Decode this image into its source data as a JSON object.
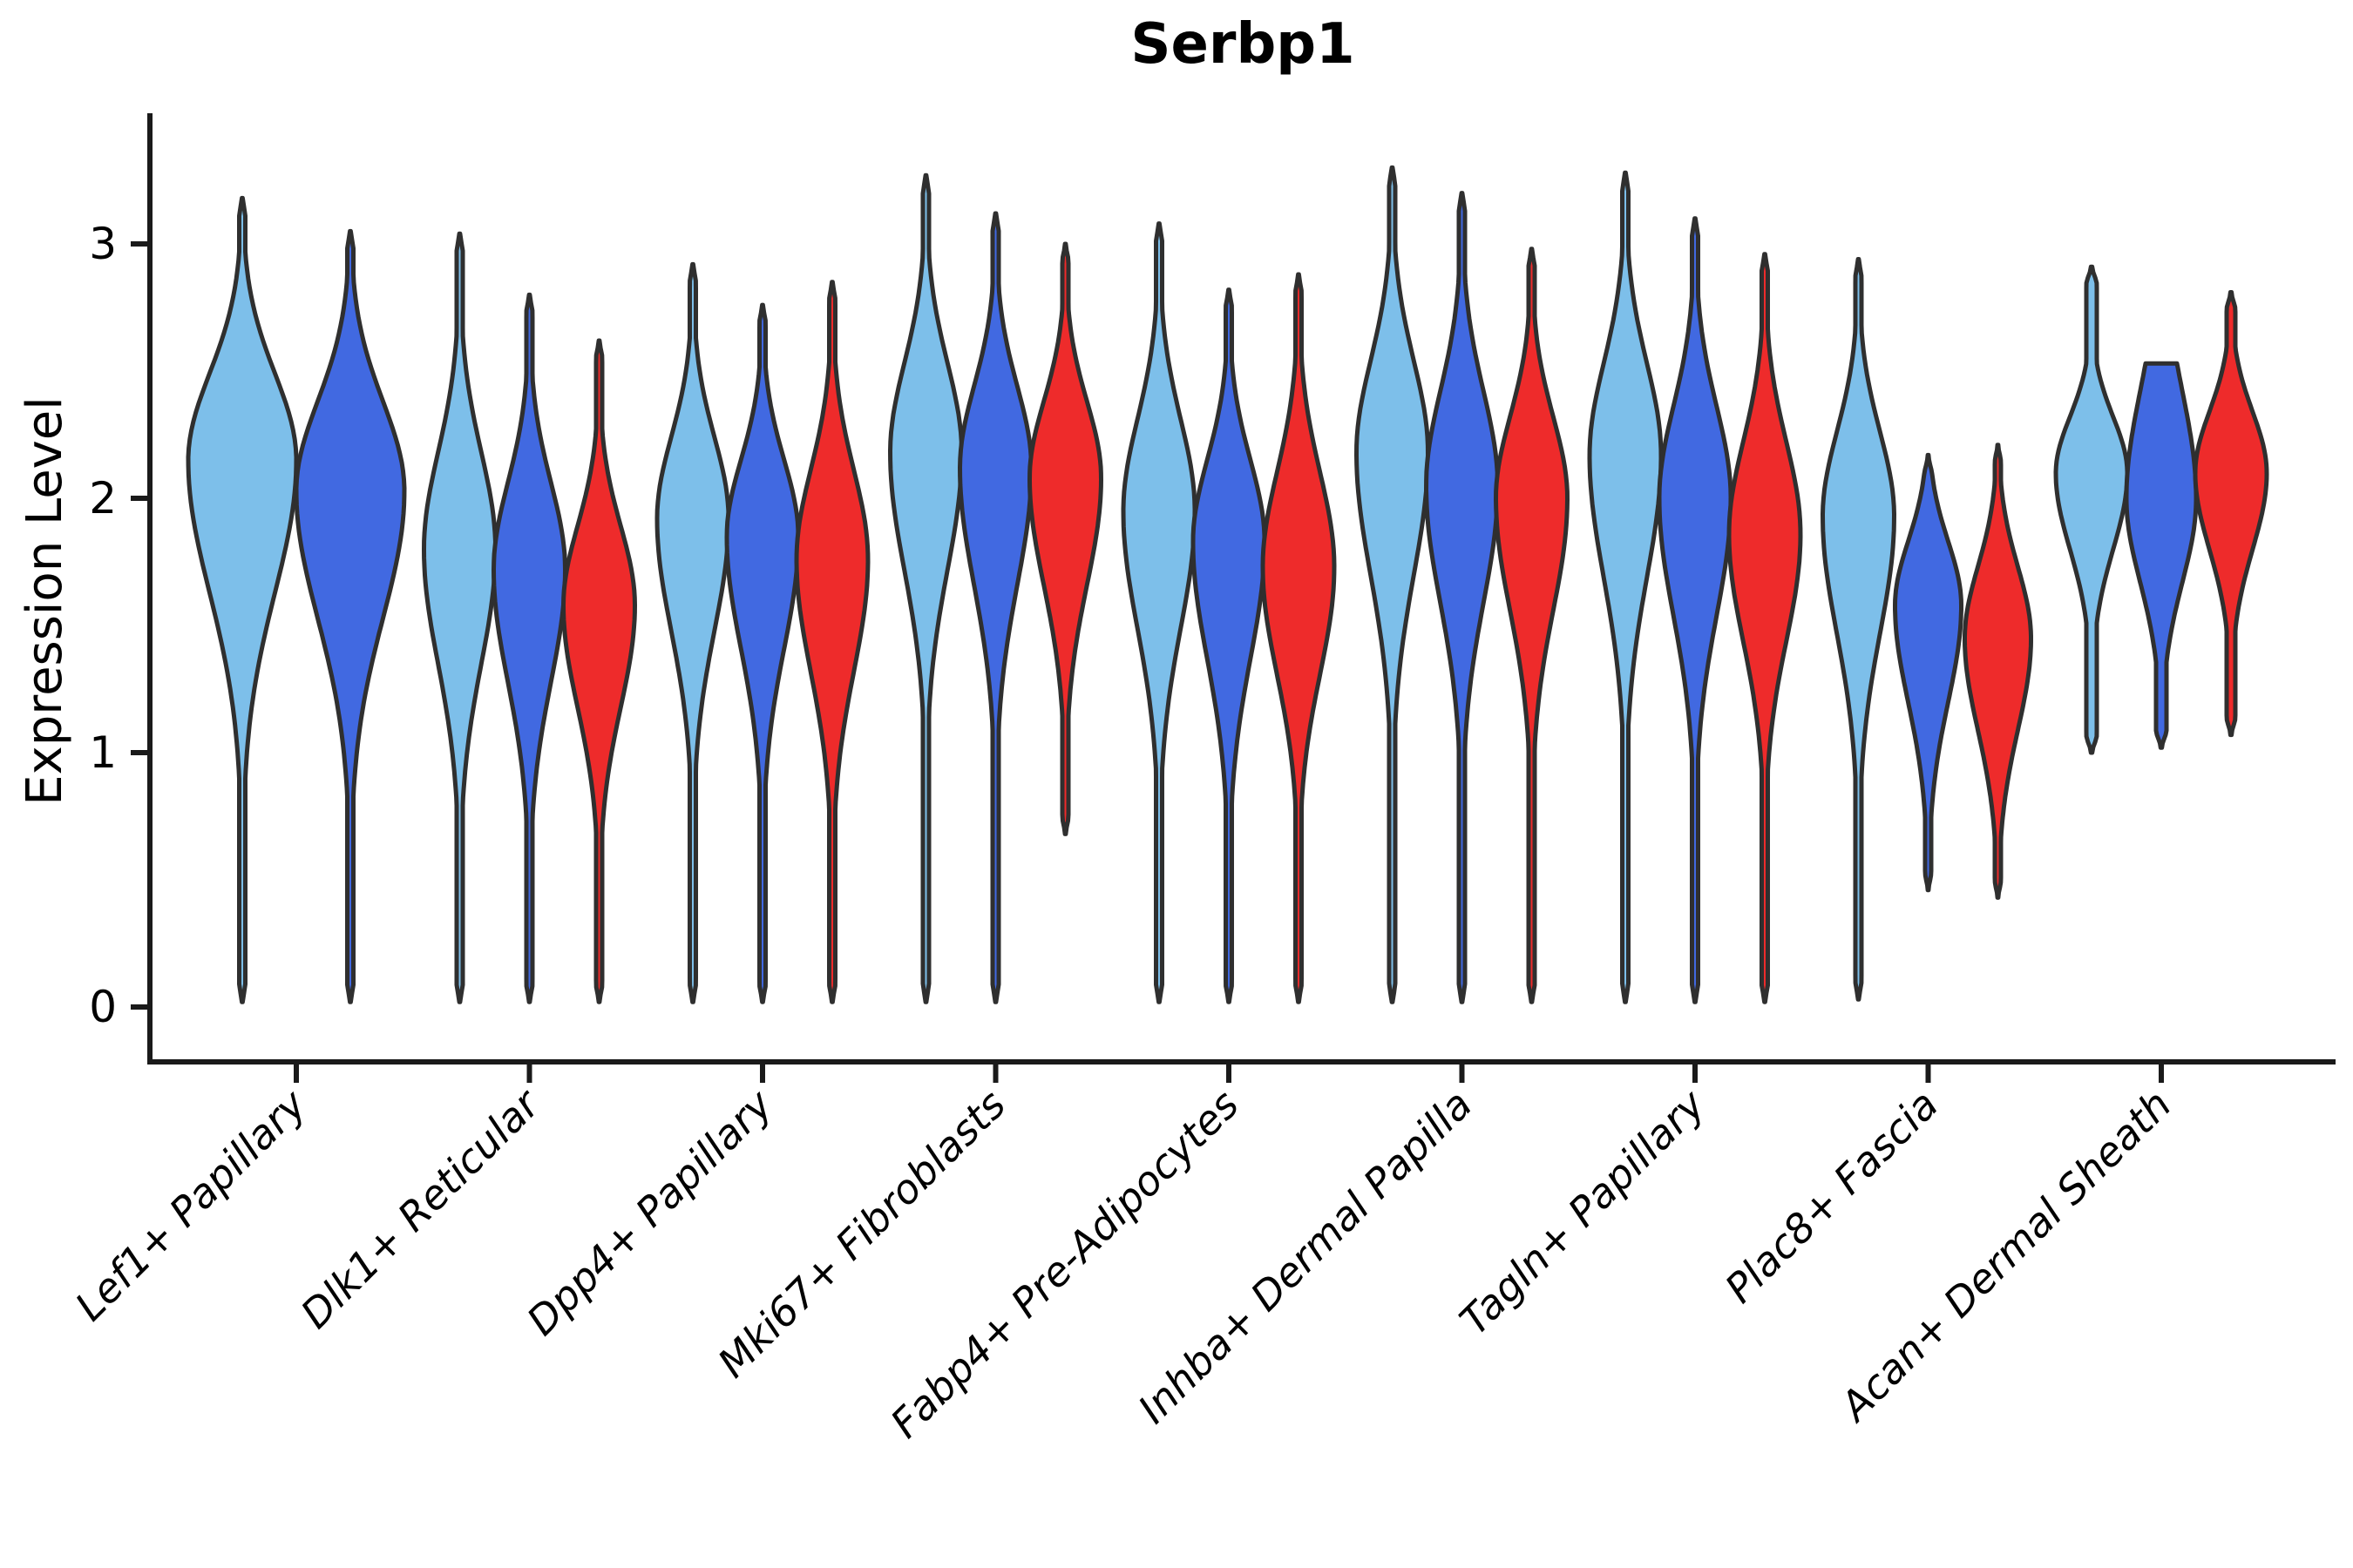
{
  "chart_data": {
    "type": "violin",
    "title": "Serbp1",
    "ylabel": "Expression Level",
    "xlabel": "",
    "y_ticks": [
      0,
      1,
      2,
      3
    ],
    "ylim": [
      -0.27,
      3.51
    ],
    "legend_position": "none",
    "grid": false,
    "categories": [
      "Lef1+ Papillary",
      "Dlk1+ Reticular",
      "Dpp4+ Papillary",
      "Mki67+ Fibroblasts",
      "Fabp4+ Pre-Adipocytes",
      "Inhba+ Dermal Papilla",
      "Tagln+ Papillary",
      "Plac8+ Fascia",
      "Acan+ Dermal Sheath"
    ],
    "split_levels": [
      "light_blue",
      "blue",
      "red"
    ],
    "series_colors": {
      "light_blue": "#7DBFEA",
      "blue": "#4169E1",
      "red": "#EE2B2B"
    },
    "outline_color": "#2F2F2F",
    "axis_color": "#1a1a1a",
    "groups": [
      {
        "label": "Lef1+ Papillary",
        "violins": [
          {
            "split": "light_blue",
            "min": 0.02,
            "peak": 2.15,
            "max": 3.18,
            "spread_below": 0.52,
            "spread_above": 0.34,
            "half_width": 62
          },
          {
            "split": "blue",
            "min": 0.02,
            "peak": 2.03,
            "max": 3.05,
            "spread_below": 0.5,
            "spread_above": 0.35,
            "half_width": 62
          }
        ]
      },
      {
        "label": "Dlk1+ Reticular",
        "violins": [
          {
            "split": "light_blue",
            "min": 0.02,
            "peak": 1.8,
            "max": 3.04,
            "spread_below": 0.45,
            "spread_above": 0.38,
            "half_width": 41
          },
          {
            "split": "blue",
            "min": 0.02,
            "peak": 1.72,
            "max": 2.8,
            "spread_below": 0.44,
            "spread_above": 0.34,
            "half_width": 41
          },
          {
            "split": "red",
            "min": 0.02,
            "peak": 1.58,
            "max": 2.62,
            "spread_below": 0.4,
            "spread_above": 0.31,
            "half_width": 41
          }
        ]
      },
      {
        "label": "Dpp4+ Papillary",
        "violins": [
          {
            "split": "light_blue",
            "min": 0.02,
            "peak": 1.92,
            "max": 2.92,
            "spread_below": 0.44,
            "spread_above": 0.32,
            "half_width": 41
          },
          {
            "split": "blue",
            "min": 0.02,
            "peak": 1.85,
            "max": 2.76,
            "spread_below": 0.44,
            "spread_above": 0.3,
            "half_width": 41
          },
          {
            "split": "red",
            "min": 0.02,
            "peak": 1.76,
            "max": 2.85,
            "spread_below": 0.44,
            "spread_above": 0.35,
            "half_width": 41
          }
        ]
      },
      {
        "label": "Mki67+ Fibroblasts",
        "violins": [
          {
            "split": "light_blue",
            "min": 0.02,
            "peak": 2.18,
            "max": 3.27,
            "spread_below": 0.46,
            "spread_above": 0.35,
            "half_width": 41
          },
          {
            "split": "blue",
            "min": 0.02,
            "peak": 2.12,
            "max": 3.12,
            "spread_below": 0.46,
            "spread_above": 0.32,
            "half_width": 41
          },
          {
            "split": "red",
            "min": 0.68,
            "peak": 2.08,
            "max": 3.0,
            "spread_below": 0.42,
            "spread_above": 0.3,
            "half_width": 41
          }
        ]
      },
      {
        "label": "Fabp4+ Pre-Adipocytes",
        "violins": [
          {
            "split": "light_blue",
            "min": 0.02,
            "peak": 1.95,
            "max": 3.08,
            "spread_below": 0.46,
            "spread_above": 0.36,
            "half_width": 41
          },
          {
            "split": "blue",
            "min": 0.02,
            "peak": 1.83,
            "max": 2.82,
            "spread_below": 0.46,
            "spread_above": 0.32,
            "half_width": 41
          },
          {
            "split": "red",
            "min": 0.02,
            "peak": 1.73,
            "max": 2.88,
            "spread_below": 0.42,
            "spread_above": 0.37,
            "half_width": 41
          }
        ]
      },
      {
        "label": "Inhba+ Dermal Papilla",
        "violins": [
          {
            "split": "light_blue",
            "min": 0.02,
            "peak": 2.18,
            "max": 3.3,
            "spread_below": 0.48,
            "spread_above": 0.36,
            "half_width": 41
          },
          {
            "split": "blue",
            "min": 0.02,
            "peak": 2.05,
            "max": 3.2,
            "spread_below": 0.46,
            "spread_above": 0.37,
            "half_width": 41
          },
          {
            "split": "red",
            "min": 0.02,
            "peak": 2.0,
            "max": 2.98,
            "spread_below": 0.44,
            "spread_above": 0.32,
            "half_width": 41
          }
        ]
      },
      {
        "label": "Tagln+ Papillary",
        "violins": [
          {
            "split": "light_blue",
            "min": 0.02,
            "peak": 2.17,
            "max": 3.28,
            "spread_below": 0.48,
            "spread_above": 0.36,
            "half_width": 41
          },
          {
            "split": "blue",
            "min": 0.02,
            "peak": 2.0,
            "max": 3.1,
            "spread_below": 0.46,
            "spread_above": 0.36,
            "half_width": 41
          },
          {
            "split": "red",
            "min": 0.02,
            "peak": 1.86,
            "max": 2.96,
            "spread_below": 0.42,
            "spread_above": 0.36,
            "half_width": 41
          }
        ]
      },
      {
        "label": "Plac8+ Fascia",
        "violins": [
          {
            "split": "light_blue",
            "min": 0.03,
            "peak": 1.93,
            "max": 2.94,
            "spread_below": 0.46,
            "spread_above": 0.33,
            "half_width": 41
          },
          {
            "split": "blue",
            "min": 0.46,
            "peak": 1.58,
            "max": 2.17,
            "spread_below": 0.38,
            "spread_above": 0.25,
            "half_width": 38
          },
          {
            "split": "red",
            "min": 0.43,
            "peak": 1.45,
            "max": 2.21,
            "spread_below": 0.36,
            "spread_above": 0.28,
            "half_width": 38
          }
        ]
      },
      {
        "label": "Acan+ Dermal Sheath",
        "violins": [
          {
            "split": "light_blue",
            "min": 1.0,
            "peak": 2.1,
            "max": 2.91,
            "spread_below": 0.3,
            "spread_above": 0.22,
            "half_width": 41,
            "stem_half_width": 6
          },
          {
            "split": "blue",
            "min": 1.02,
            "peak": 2.0,
            "max": 2.53,
            "spread_below": 0.33,
            "spread_above": 0.42,
            "half_width": 40,
            "stem_half_width": 6,
            "flat_top": true
          },
          {
            "split": "red",
            "min": 1.07,
            "peak": 2.1,
            "max": 2.81,
            "spread_below": 0.3,
            "spread_above": 0.24,
            "half_width": 41,
            "stem_half_width": 5
          }
        ]
      }
    ]
  }
}
